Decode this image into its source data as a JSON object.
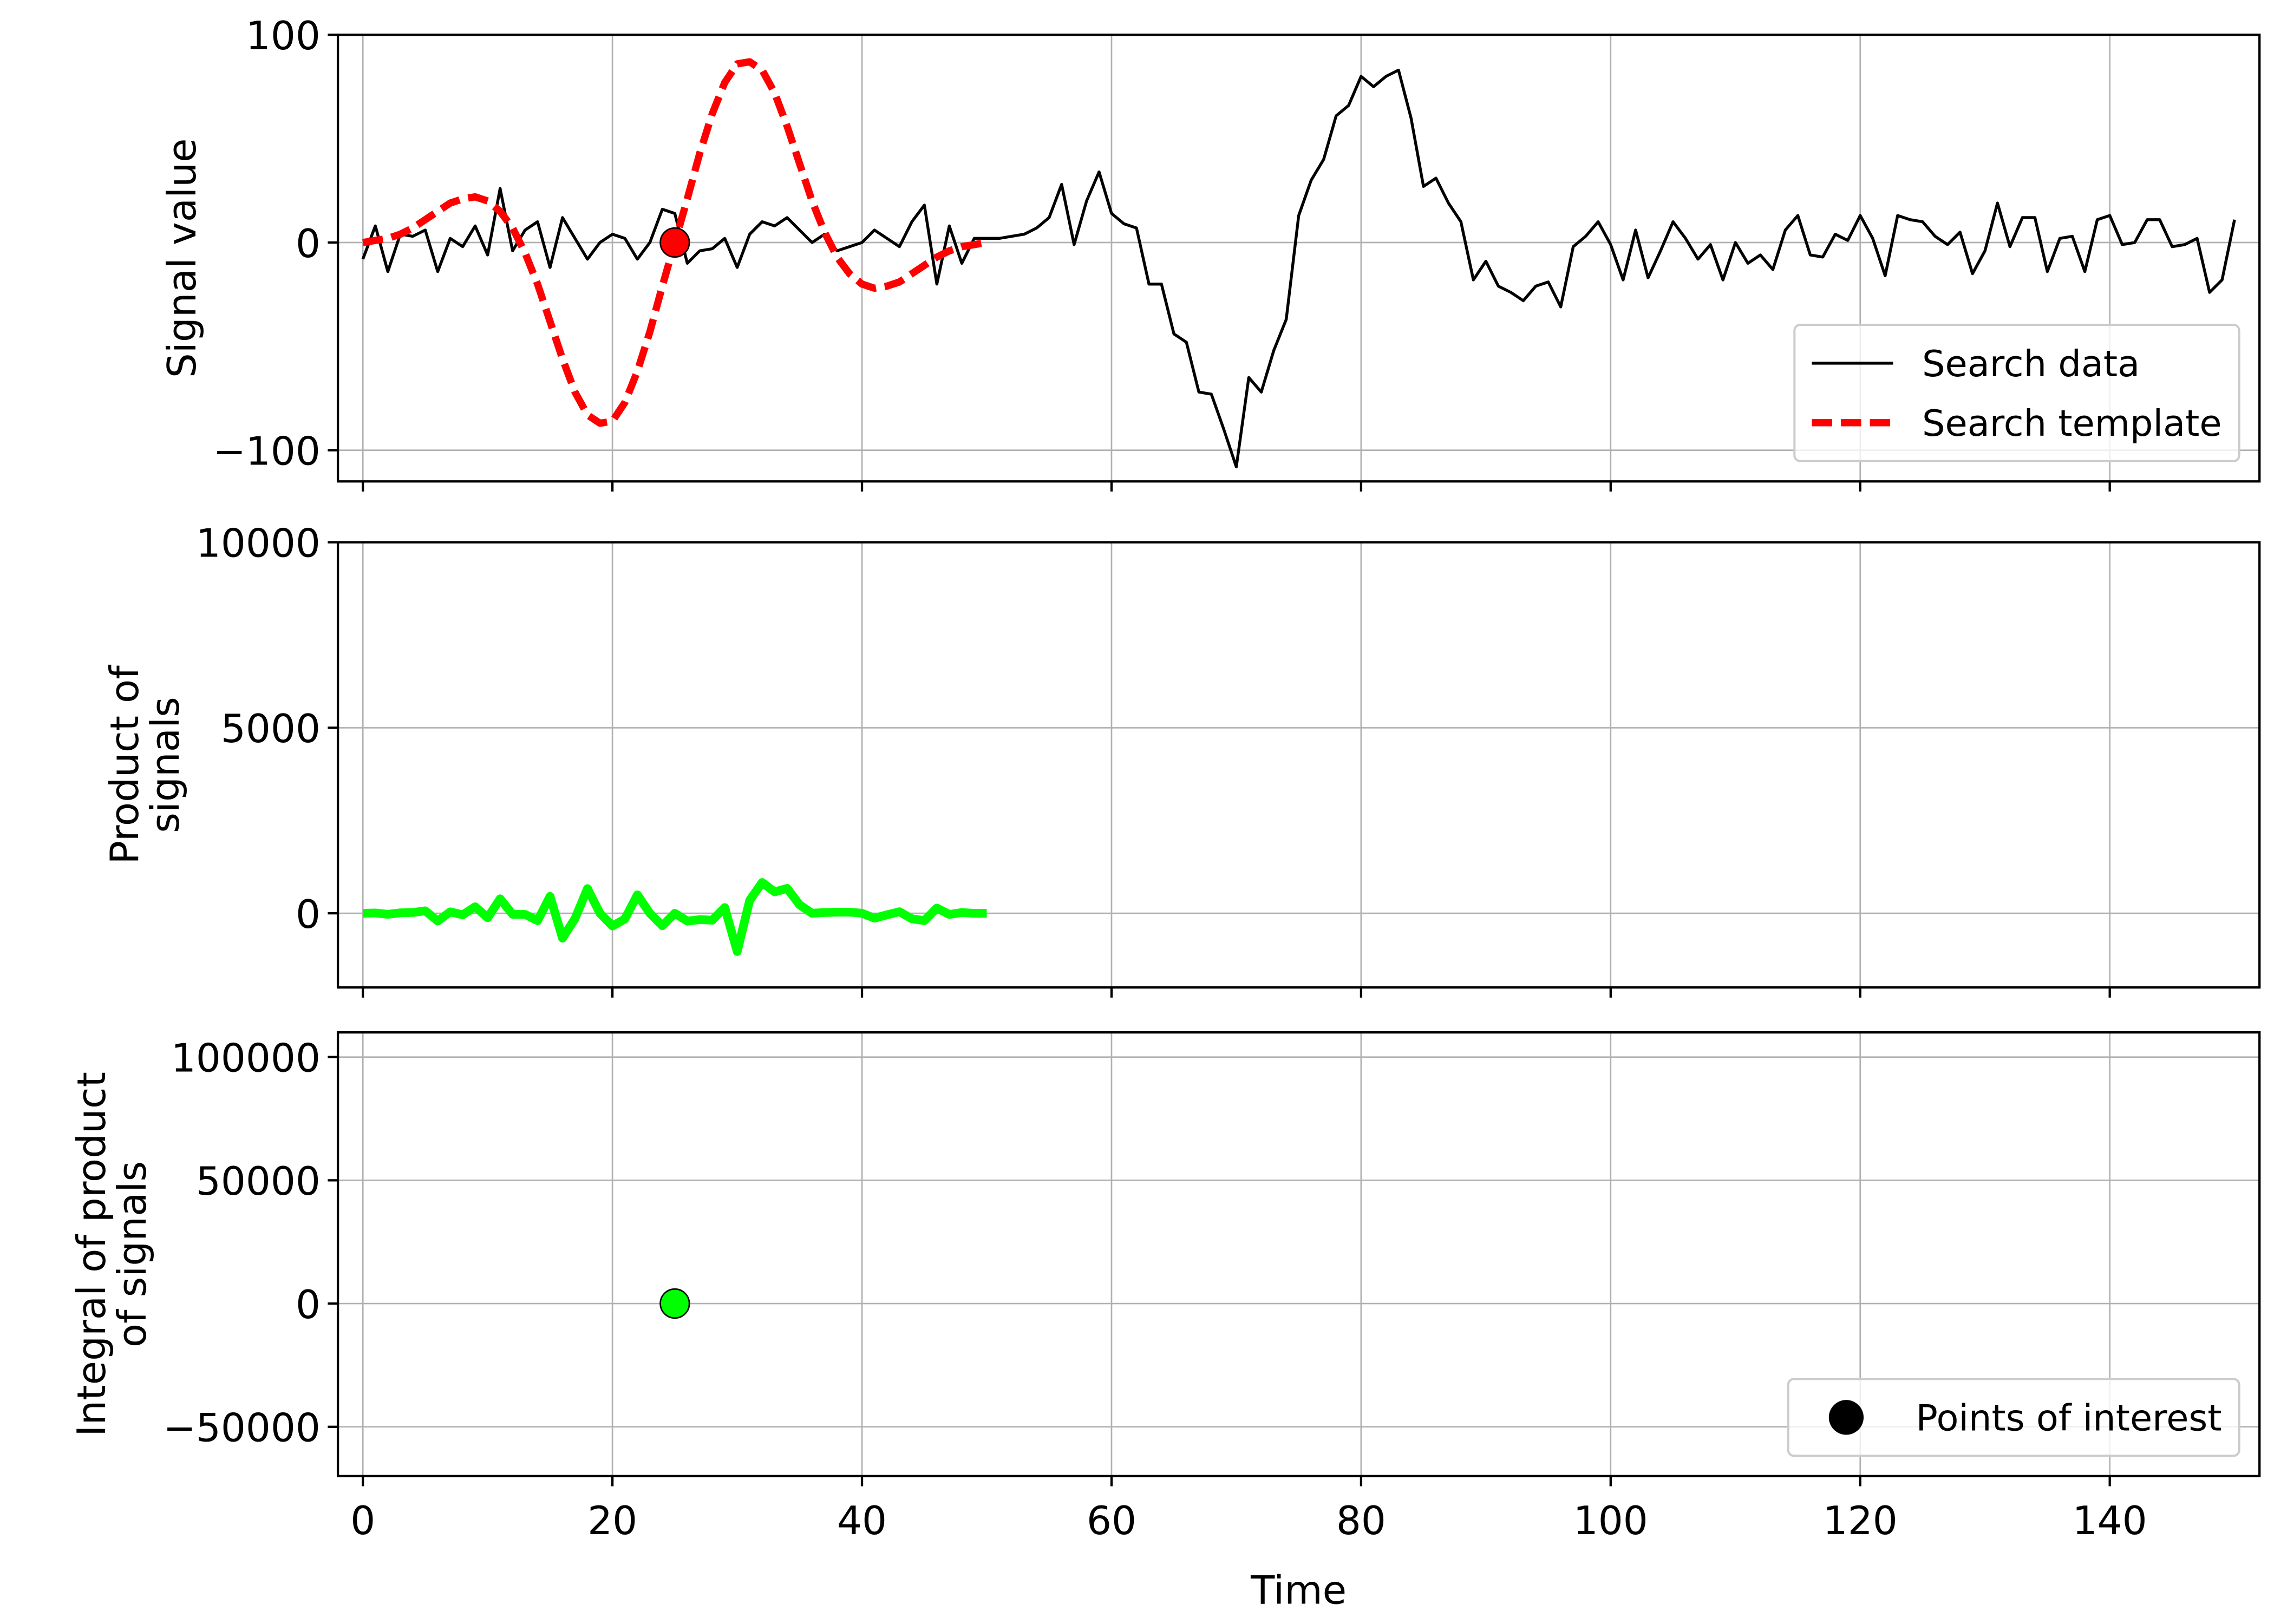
{
  "chart_data": [
    {
      "type": "line",
      "ylabel": [
        "Signal value"
      ],
      "xlim": [
        -2,
        152
      ],
      "ylim": [
        -115,
        100
      ],
      "xticks": [
        0,
        20,
        40,
        60,
        80,
        100,
        120,
        140
      ],
      "show_xtick_labels": false,
      "yticks": [
        {
          "value": -100,
          "label": "−100"
        },
        0,
        100
      ],
      "grid": true,
      "legend": "lower right",
      "series": [
        {
          "name": "Search data",
          "color": "#000000",
          "linestyle": "solid",
          "linewidth": 2,
          "x": [
            0,
            1,
            2,
            3,
            4,
            5,
            6,
            7,
            8,
            9,
            10,
            11,
            12,
            13,
            14,
            15,
            16,
            17,
            18,
            19,
            20,
            21,
            22,
            23,
            24,
            25,
            26,
            27,
            28,
            29,
            30,
            31,
            32,
            33,
            34,
            35,
            36,
            37,
            38,
            39,
            40,
            41,
            42,
            43,
            44,
            45,
            46,
            47,
            48,
            49,
            50,
            51,
            52,
            53,
            54,
            55,
            56,
            57,
            58,
            59,
            60,
            61,
            62,
            63,
            64,
            65,
            66,
            67,
            68,
            69,
            70,
            71,
            72,
            73,
            74,
            75,
            76,
            77,
            78,
            79,
            80,
            81,
            82,
            83,
            84,
            85,
            86,
            87,
            88,
            89,
            90,
            91,
            92,
            93,
            94,
            95,
            96,
            97,
            98,
            99,
            100,
            101,
            102,
            103,
            104,
            105,
            106,
            107,
            108,
            109,
            110,
            111,
            112,
            113,
            114,
            115,
            116,
            117,
            118,
            119,
            120,
            121,
            122,
            123,
            124,
            125,
            126,
            127,
            128,
            129,
            130,
            131,
            132,
            133,
            134,
            135,
            136,
            137,
            138,
            139,
            140,
            141,
            142,
            143,
            144,
            145,
            146,
            147,
            148,
            149,
            150
          ],
          "values": [
            -8,
            8,
            -14,
            4,
            3,
            6,
            -14,
            2,
            -2,
            8,
            -6,
            26,
            -4,
            6,
            10,
            -12,
            12,
            2,
            -8,
            0,
            4,
            2,
            -8,
            0,
            16,
            14,
            -10,
            -4,
            -3,
            2,
            -12,
            4,
            10,
            8,
            12,
            6,
            0,
            4,
            -4,
            -2,
            0,
            6,
            2,
            -2,
            10,
            18,
            -20,
            8,
            -10,
            2,
            2,
            2,
            3,
            4,
            7,
            12,
            28,
            -1,
            20,
            34,
            14,
            9,
            7,
            -20,
            -20,
            -44,
            -48,
            -72,
            -73,
            -90,
            -108,
            -65,
            -72,
            -52,
            -37,
            13,
            30,
            40,
            61,
            66,
            80,
            75,
            80,
            83,
            60,
            27,
            31,
            19,
            10,
            -18,
            -9,
            -21,
            -24,
            -28,
            -21,
            -19,
            -31,
            -2,
            3,
            10,
            -1,
            -18,
            6,
            -17,
            -4,
            10,
            2,
            -8,
            -1,
            -18,
            0,
            -10,
            -6,
            -13,
            6,
            13,
            -6,
            -7,
            4,
            1,
            13,
            2,
            -16,
            13,
            11,
            10,
            3,
            -1,
            5,
            -15,
            -4,
            19,
            -2,
            12,
            12,
            -14,
            2,
            3,
            -14,
            11,
            13,
            -1,
            0,
            11,
            11,
            -2,
            -1,
            2,
            -24,
            -18,
            11
          ]
        },
        {
          "name": "Search template",
          "color": "#ff0000",
          "linestyle": "dashed",
          "linewidth": 5,
          "x": [
            0,
            1,
            2,
            3,
            4,
            5,
            6,
            7,
            8,
            9,
            10,
            11,
            12,
            13,
            14,
            15,
            16,
            17,
            18,
            19,
            20,
            21,
            22,
            23,
            24,
            25,
            26,
            27,
            28,
            29,
            30,
            31,
            32,
            33,
            34,
            35,
            36,
            37,
            38,
            39,
            40,
            41,
            42,
            43,
            44,
            45,
            46,
            47,
            48,
            49,
            50
          ],
          "values": [
            0,
            1,
            2,
            4,
            7,
            11,
            15,
            19,
            21,
            22,
            20,
            15,
            7,
            -5,
            -20,
            -38,
            -56,
            -72,
            -83,
            -87,
            -86,
            -77,
            -62,
            -43,
            -21,
            0,
            21,
            43,
            62,
            77,
            86,
            87,
            83,
            72,
            56,
            38,
            20,
            5,
            -7,
            -15,
            -20,
            -22,
            -21,
            -19,
            -15,
            -11,
            -7,
            -4,
            -2,
            -1,
            0
          ]
        },
        {
          "color": "#ff0000",
          "marker": true,
          "x": [
            25
          ],
          "values": [
            0
          ]
        }
      ]
    },
    {
      "type": "line",
      "ylabel": [
        "Product of",
        "signals"
      ],
      "xlim": [
        -2,
        152
      ],
      "ylim": [
        -2000,
        10000
      ],
      "xticks": [
        0,
        20,
        40,
        60,
        80,
        100,
        120,
        140
      ],
      "show_xtick_labels": false,
      "yticks": [
        0,
        5000,
        10000
      ],
      "grid": true,
      "series": [
        {
          "color": "#00ff00",
          "linestyle": "solid",
          "linewidth": 6,
          "x": [
            0,
            1,
            2,
            3,
            4,
            5,
            6,
            7,
            8,
            9,
            10,
            11,
            12,
            13,
            14,
            15,
            16,
            17,
            18,
            19,
            20,
            21,
            22,
            23,
            24,
            25,
            26,
            27,
            28,
            29,
            30,
            31,
            32,
            33,
            34,
            35,
            36,
            37,
            38,
            39,
            40,
            41,
            42,
            43,
            44,
            45,
            46,
            47,
            48,
            49,
            50
          ],
          "values": [
            0,
            8,
            -28,
            12,
            21,
            66,
            -210,
            38,
            -42,
            176,
            -120,
            390,
            -28,
            -30,
            -200,
            456,
            -672,
            -144,
            664,
            0,
            -344,
            -154,
            496,
            0,
            -336,
            0,
            -210,
            -172,
            -186,
            154,
            -1032,
            348,
            830,
            576,
            672,
            228,
            0,
            20,
            28,
            30,
            0,
            -132,
            -42,
            42,
            -150,
            -198,
            140,
            -32,
            20,
            -2,
            0
          ]
        }
      ]
    },
    {
      "type": "line",
      "ylabel": [
        "Integral of product",
        "of signals"
      ],
      "xlabel": "Time",
      "xlim": [
        -2,
        152
      ],
      "ylim": [
        -70000,
        110000
      ],
      "xticks": [
        0,
        20,
        40,
        60,
        80,
        100,
        120,
        140
      ],
      "show_xtick_labels": true,
      "yticks": [
        {
          "value": -50000,
          "label": "−50000"
        },
        0,
        50000,
        100000
      ],
      "grid": true,
      "legend": "lower right",
      "series": [
        {
          "name": "Points of interest",
          "color": "#00ff00",
          "legend_color": "#000000",
          "marker": true,
          "x": [
            25
          ],
          "values": [
            0
          ]
        }
      ]
    }
  ]
}
